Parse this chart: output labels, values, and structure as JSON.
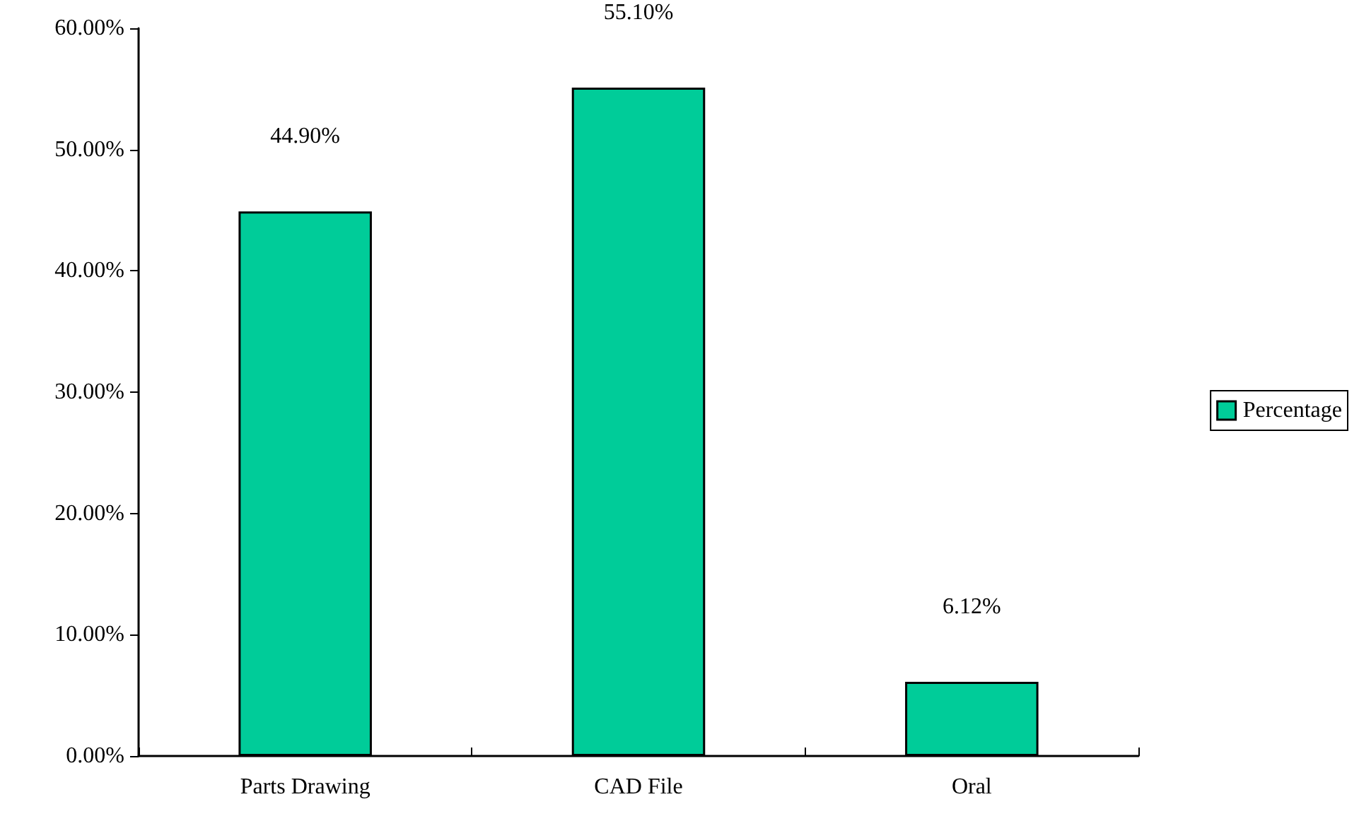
{
  "chart_data": {
    "type": "bar",
    "categories": [
      "Parts Drawing",
      "CAD File",
      "Oral"
    ],
    "series": [
      {
        "name": "Percentage",
        "color": "#00cc99",
        "values": [
          44.9,
          55.1,
          6.12
        ],
        "value_labels": [
          "44.90%",
          "55.10%",
          "6.12%"
        ]
      }
    ],
    "ylim": [
      0,
      60
    ],
    "yticks": [
      {
        "value": 0,
        "label": "0.00%"
      },
      {
        "value": 10,
        "label": "10.00%"
      },
      {
        "value": 20,
        "label": "20.00%"
      },
      {
        "value": 30,
        "label": "30.00%"
      },
      {
        "value": 40,
        "label": "40.00%"
      },
      {
        "value": 50,
        "label": "50.00%"
      },
      {
        "value": 60,
        "label": "60.00%"
      }
    ],
    "grid": false,
    "legend": "right"
  }
}
